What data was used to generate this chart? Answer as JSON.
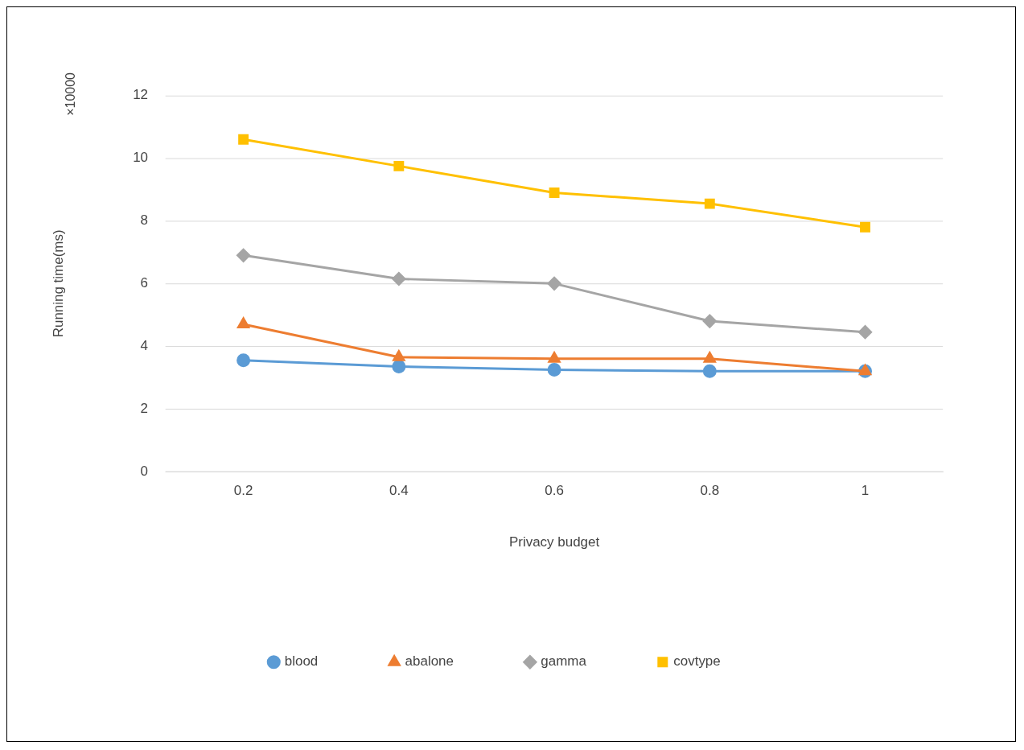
{
  "chart_data": {
    "type": "line",
    "xlabel": "Privacy budget",
    "ylabel": "Running time(ms)",
    "annotations": [
      "×10000"
    ],
    "categories": [
      "0.2",
      "0.4",
      "0.6",
      "0.8",
      "1"
    ],
    "series": [
      {
        "name": "blood",
        "color": "#5b9bd5",
        "marker": "circle",
        "values": [
          3.55,
          3.35,
          3.25,
          3.2,
          3.2
        ]
      },
      {
        "name": "abalone",
        "color": "#ed7d31",
        "marker": "triangle",
        "values": [
          4.7,
          3.65,
          3.6,
          3.6,
          3.2
        ]
      },
      {
        "name": "gamma",
        "color": "#a5a5a5",
        "marker": "diamond",
        "values": [
          6.9,
          6.15,
          6.0,
          4.8,
          4.45
        ]
      },
      {
        "name": "covtype",
        "color": "#ffc000",
        "marker": "square",
        "values": [
          10.6,
          9.75,
          8.9,
          8.55,
          7.8
        ]
      }
    ],
    "ylim": [
      0,
      12
    ],
    "yticks": [
      0,
      2,
      4,
      6,
      8,
      10,
      12
    ],
    "grid": "y",
    "legend": "bottom",
    "line_style": "solid"
  }
}
